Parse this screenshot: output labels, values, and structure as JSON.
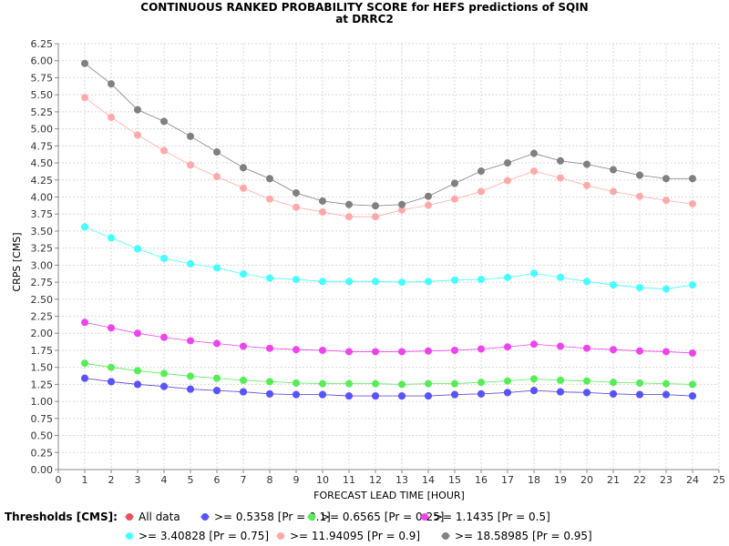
{
  "chart_data": {
    "type": "line",
    "title": "CONTINUOUS RANKED PROBABILITY SCORE for HEFS predictions of SQIN",
    "subtitle": "at DRRC2",
    "xlabel": "FORECAST LEAD TIME [HOUR]",
    "ylabel": "CRPS [CMS]",
    "xlim": [
      0,
      25
    ],
    "ylim": [
      0,
      6.25
    ],
    "x_ticks": [
      "0",
      "1",
      "2",
      "3",
      "4",
      "5",
      "6",
      "7",
      "8",
      "9",
      "10",
      "11",
      "12",
      "13",
      "14",
      "15",
      "16",
      "17",
      "18",
      "19",
      "20",
      "21",
      "22",
      "23",
      "24",
      "25"
    ],
    "y_ticks": [
      "0.00",
      "0.25",
      "0.50",
      "0.75",
      "1.00",
      "1.25",
      "1.50",
      "1.75",
      "2.00",
      "2.25",
      "2.50",
      "2.75",
      "3.00",
      "3.25",
      "3.50",
      "3.75",
      "4.00",
      "4.25",
      "4.50",
      "4.75",
      "5.00",
      "5.25",
      "5.50",
      "5.75",
      "6.00",
      "6.25"
    ],
    "grid": true,
    "legend_position": "bottom",
    "legend_title": "Thresholds [CMS]:",
    "x": [
      1,
      2,
      3,
      4,
      5,
      6,
      7,
      8,
      9,
      10,
      11,
      12,
      13,
      14,
      15,
      16,
      17,
      18,
      19,
      20,
      21,
      22,
      23,
      24
    ],
    "series": [
      {
        "name": "All data",
        "color": "#e8505a",
        "values": [
          1.34,
          1.29,
          1.25,
          1.22,
          1.18,
          1.16,
          1.14,
          1.11,
          1.1,
          1.1,
          1.08,
          1.08,
          1.08,
          1.08,
          1.1,
          1.11,
          1.13,
          1.16,
          1.14,
          1.13,
          1.11,
          1.1,
          1.1,
          1.08
        ]
      },
      {
        "name": ">= 0.5358 [Pr = 0.1]",
        "color": "#5555ff",
        "values": [
          1.34,
          1.29,
          1.25,
          1.22,
          1.18,
          1.16,
          1.14,
          1.11,
          1.1,
          1.1,
          1.08,
          1.08,
          1.08,
          1.08,
          1.1,
          1.11,
          1.13,
          1.16,
          1.14,
          1.13,
          1.11,
          1.1,
          1.1,
          1.08
        ]
      },
      {
        "name": ">= 0.6565 [Pr = 0.25]",
        "color": "#55ee55",
        "values": [
          1.56,
          1.5,
          1.45,
          1.41,
          1.37,
          1.34,
          1.31,
          1.29,
          1.27,
          1.26,
          1.26,
          1.26,
          1.25,
          1.26,
          1.26,
          1.28,
          1.3,
          1.33,
          1.31,
          1.3,
          1.28,
          1.27,
          1.26,
          1.25
        ]
      },
      {
        "name": ">= 1.1435 [Pr = 0.5]",
        "color": "#ee44ee",
        "values": [
          2.16,
          2.08,
          2.0,
          1.94,
          1.89,
          1.85,
          1.81,
          1.78,
          1.76,
          1.75,
          1.73,
          1.73,
          1.73,
          1.74,
          1.75,
          1.77,
          1.8,
          1.84,
          1.81,
          1.78,
          1.76,
          1.74,
          1.73,
          1.71
        ]
      },
      {
        "name": ">= 3.40828 [Pr = 0.75]",
        "color": "#44ffff",
        "values": [
          3.56,
          3.4,
          3.24,
          3.1,
          3.02,
          2.96,
          2.87,
          2.81,
          2.79,
          2.76,
          2.76,
          2.76,
          2.75,
          2.76,
          2.78,
          2.79,
          2.82,
          2.88,
          2.82,
          2.76,
          2.71,
          2.67,
          2.65,
          2.71
        ]
      },
      {
        "name": ">= 11.94095 [Pr = 0.9]",
        "color": "#ffaaaa",
        "values": [
          5.46,
          5.17,
          4.91,
          4.68,
          4.47,
          4.3,
          4.13,
          3.97,
          3.85,
          3.78,
          3.71,
          3.71,
          3.81,
          3.88,
          3.97,
          4.08,
          4.24,
          4.38,
          4.28,
          4.17,
          4.08,
          4.01,
          3.95,
          3.9
        ]
      },
      {
        "name": ">= 18.58985 [Pr = 0.95]",
        "color": "#808080",
        "values": [
          5.96,
          5.66,
          5.28,
          5.11,
          4.89,
          4.66,
          4.43,
          4.27,
          4.06,
          3.94,
          3.89,
          3.87,
          3.89,
          4.01,
          4.2,
          4.38,
          4.5,
          4.64,
          4.53,
          4.48,
          4.4,
          4.32,
          4.27,
          4.27
        ]
      }
    ]
  }
}
